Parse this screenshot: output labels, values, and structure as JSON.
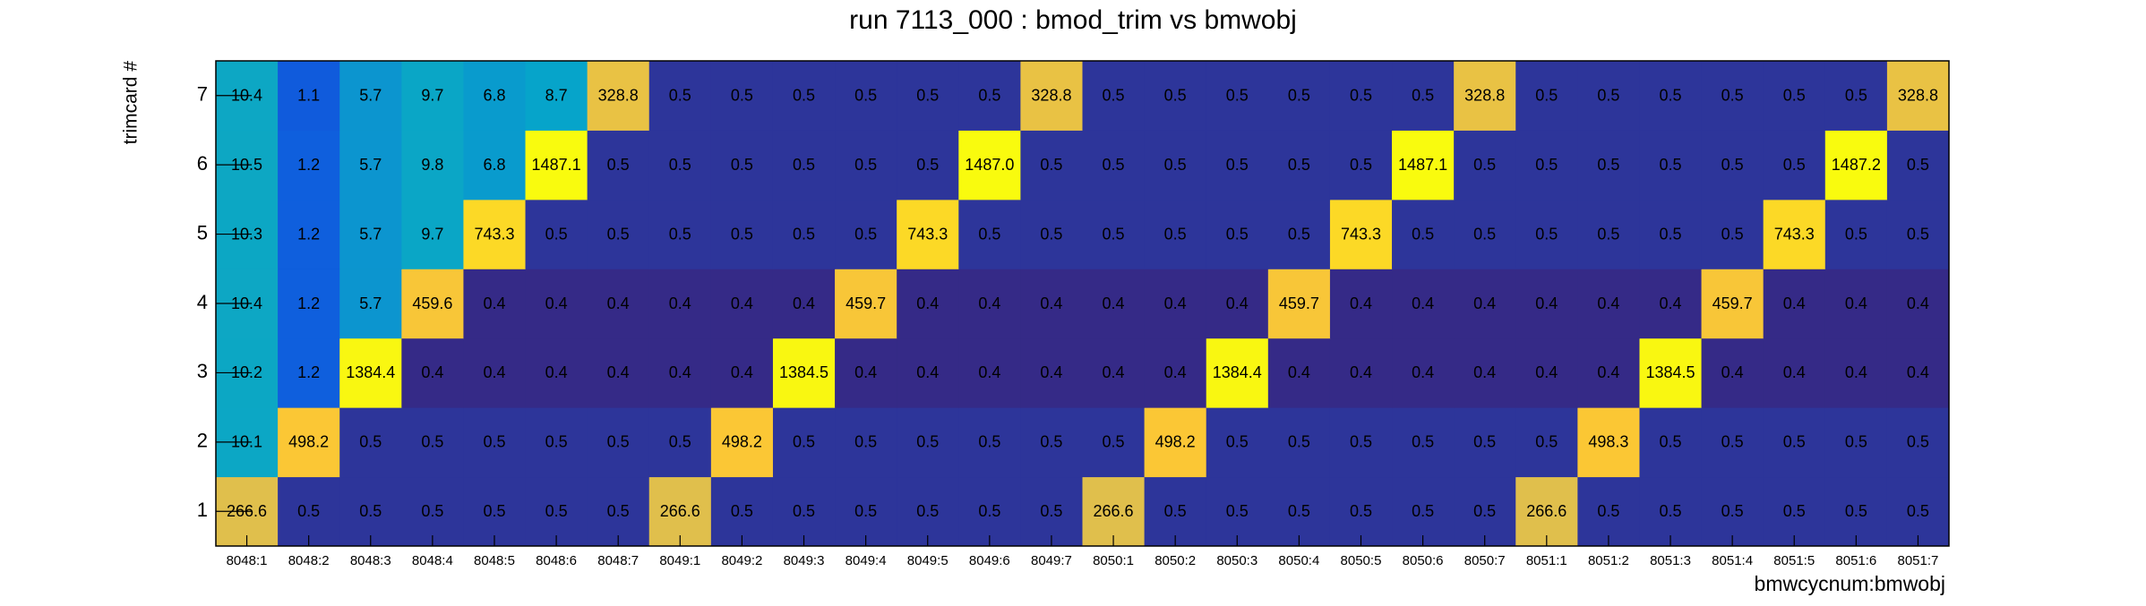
{
  "chart_data": {
    "type": "heatmap",
    "title": "run 7113_000 : bmod_trim vs bmwobj",
    "x_label": "bmwcycnum:bmwobj",
    "y_label": "trimcard #",
    "z_log": true,
    "palette": [
      "#352a87",
      "#0f5cdd",
      "#1481d6",
      "#06a4ca",
      "#2eb7a4",
      "#87bf77",
      "#d1bb59",
      "#fec832",
      "#f9fb0e"
    ],
    "categories": [
      "8048:1",
      "8048:2",
      "8048:3",
      "8048:4",
      "8048:5",
      "8048:6",
      "8048:7",
      "8049:1",
      "8049:2",
      "8049:3",
      "8049:4",
      "8049:5",
      "8049:6",
      "8049:7",
      "8050:1",
      "8050:2",
      "8050:3",
      "8050:4",
      "8050:5",
      "8050:6",
      "8050:7",
      "8051:1",
      "8051:2",
      "8051:3",
      "8051:4",
      "8051:5",
      "8051:6",
      "8051:7"
    ],
    "y_categories": [
      1,
      2,
      3,
      4,
      5,
      6,
      7
    ],
    "values": [
      [
        266.6,
        0.5,
        0.5,
        0.5,
        0.5,
        0.5,
        0.5,
        266.6,
        0.5,
        0.5,
        0.5,
        0.5,
        0.5,
        0.5,
        266.6,
        0.5,
        0.5,
        0.5,
        0.5,
        0.5,
        0.5,
        266.6,
        0.5,
        0.5,
        0.5,
        0.5,
        0.5,
        0.5
      ],
      [
        10.1,
        498.2,
        0.5,
        0.5,
        0.5,
        0.5,
        0.5,
        0.5,
        498.2,
        0.5,
        0.5,
        0.5,
        0.5,
        0.5,
        0.5,
        498.2,
        0.5,
        0.5,
        0.5,
        0.5,
        0.5,
        0.5,
        498.3,
        0.5,
        0.5,
        0.5,
        0.5,
        0.5
      ],
      [
        10.2,
        1.2,
        1384.4,
        0.4,
        0.4,
        0.4,
        0.4,
        0.4,
        0.4,
        1384.5,
        0.4,
        0.4,
        0.4,
        0.4,
        0.4,
        0.4,
        1384.4,
        0.4,
        0.4,
        0.4,
        0.4,
        0.4,
        0.4,
        1384.5,
        0.4,
        0.4,
        0.4,
        0.4
      ],
      [
        10.4,
        1.2,
        5.7,
        459.6,
        0.4,
        0.4,
        0.4,
        0.4,
        0.4,
        0.4,
        459.7,
        0.4,
        0.4,
        0.4,
        0.4,
        0.4,
        0.4,
        459.7,
        0.4,
        0.4,
        0.4,
        0.4,
        0.4,
        0.4,
        459.7,
        0.4,
        0.4,
        0.4
      ],
      [
        10.3,
        1.2,
        5.7,
        9.7,
        743.3,
        0.5,
        0.5,
        0.5,
        0.5,
        0.5,
        0.5,
        743.3,
        0.5,
        0.5,
        0.5,
        0.5,
        0.5,
        0.5,
        743.3,
        0.5,
        0.5,
        0.5,
        0.5,
        0.5,
        0.5,
        743.3,
        0.5,
        0.5
      ],
      [
        10.5,
        1.2,
        5.7,
        9.8,
        6.8,
        1487.1,
        0.5,
        0.5,
        0.5,
        0.5,
        0.5,
        0.5,
        1487.0,
        0.5,
        0.5,
        0.5,
        0.5,
        0.5,
        0.5,
        1487.1,
        0.5,
        0.5,
        0.5,
        0.5,
        0.5,
        0.5,
        1487.2,
        0.5
      ],
      [
        10.4,
        1.1,
        5.7,
        9.7,
        6.8,
        8.7,
        328.8,
        0.5,
        0.5,
        0.5,
        0.5,
        0.5,
        0.5,
        328.8,
        0.5,
        0.5,
        0.5,
        0.5,
        0.5,
        0.5,
        328.8,
        0.5,
        0.5,
        0.5,
        0.5,
        0.5,
        0.5,
        328.8
      ]
    ],
    "value_labels": [
      [
        "266.6",
        "0.5",
        "0.5",
        "0.5",
        "0.5",
        "0.5",
        "0.5",
        "266.6",
        "0.5",
        "0.5",
        "0.5",
        "0.5",
        "0.5",
        "0.5",
        "266.6",
        "0.5",
        "0.5",
        "0.5",
        "0.5",
        "0.5",
        "0.5",
        "266.6",
        "0.5",
        "0.5",
        "0.5",
        "0.5",
        "0.5",
        "0.5"
      ],
      [
        "10.1",
        "498.2",
        "0.5",
        "0.5",
        "0.5",
        "0.5",
        "0.5",
        "0.5",
        "498.2",
        "0.5",
        "0.5",
        "0.5",
        "0.5",
        "0.5",
        "0.5",
        "498.2",
        "0.5",
        "0.5",
        "0.5",
        "0.5",
        "0.5",
        "0.5",
        "498.3",
        "0.5",
        "0.5",
        "0.5",
        "0.5",
        "0.5"
      ],
      [
        "10.2",
        "1.2",
        "1384.4",
        "0.4",
        "0.4",
        "0.4",
        "0.4",
        "0.4",
        "0.4",
        "1384.5",
        "0.4",
        "0.4",
        "0.4",
        "0.4",
        "0.4",
        "0.4",
        "1384.4",
        "0.4",
        "0.4",
        "0.4",
        "0.4",
        "0.4",
        "0.4",
        "1384.5",
        "0.4",
        "0.4",
        "0.4",
        "0.4"
      ],
      [
        "10.4",
        "1.2",
        "5.7",
        "459.6",
        "0.4",
        "0.4",
        "0.4",
        "0.4",
        "0.4",
        "0.4",
        "459.7",
        "0.4",
        "0.4",
        "0.4",
        "0.4",
        "0.4",
        "0.4",
        "459.7",
        "0.4",
        "0.4",
        "0.4",
        "0.4",
        "0.4",
        "0.4",
        "459.7",
        "0.4",
        "0.4",
        "0.4"
      ],
      [
        "10.3",
        "1.2",
        "5.7",
        "9.7",
        "743.3",
        "0.5",
        "0.5",
        "0.5",
        "0.5",
        "0.5",
        "0.5",
        "743.3",
        "0.5",
        "0.5",
        "0.5",
        "0.5",
        "0.5",
        "0.5",
        "743.3",
        "0.5",
        "0.5",
        "0.5",
        "0.5",
        "0.5",
        "0.5",
        "743.3",
        "0.5",
        "0.5"
      ],
      [
        "10.5",
        "1.2",
        "5.7",
        "9.8",
        "6.8",
        "1487.1",
        "0.5",
        "0.5",
        "0.5",
        "0.5",
        "0.5",
        "0.5",
        "1487.0",
        "0.5",
        "0.5",
        "0.5",
        "0.5",
        "0.5",
        "0.5",
        "1487.1",
        "0.5",
        "0.5",
        "0.5",
        "0.5",
        "0.5",
        "0.5",
        "1487.2",
        "0.5"
      ],
      [
        "10.4",
        "1.1",
        "5.7",
        "9.7",
        "6.8",
        "8.7",
        "328.8",
        "0.5",
        "0.5",
        "0.5",
        "0.5",
        "0.5",
        "0.5",
        "328.8",
        "0.5",
        "0.5",
        "0.5",
        "0.5",
        "0.5",
        "0.5",
        "328.8",
        "0.5",
        "0.5",
        "0.5",
        "0.5",
        "0.5",
        "0.5",
        "328.8"
      ]
    ]
  }
}
